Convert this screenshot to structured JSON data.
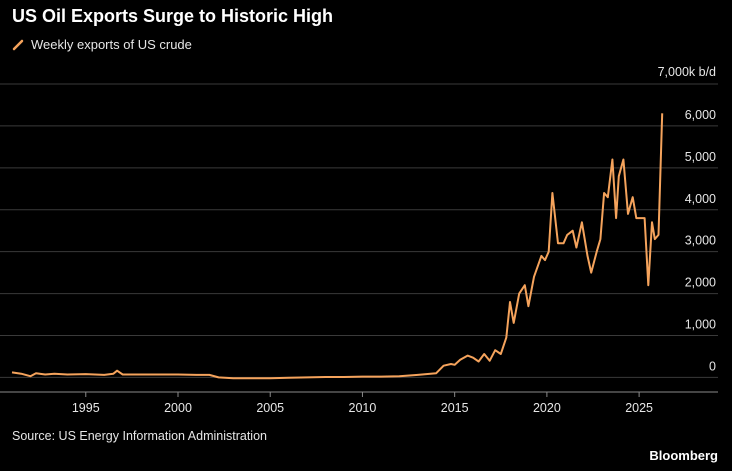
{
  "title": "US Oil Exports Surge to Historic High",
  "source": "Source: US Energy Information Administration",
  "brand": "Bloomberg",
  "colors": {
    "series": "#f5a35c",
    "grid": "#3a3a3a",
    "background": "#000000"
  },
  "chart_data": {
    "type": "line",
    "title": "US Oil Exports Surge to Historic High",
    "legend_placement": "top-left",
    "grid": true,
    "unit_label": "7,000k b/d",
    "xlim": [
      1991,
      2027
    ],
    "ylim": [
      -300,
      7000
    ],
    "x_ticks": [
      1995,
      2000,
      2005,
      2010,
      2015,
      2020,
      2025
    ],
    "x_tick_labels": [
      "1995",
      "2000",
      "2005",
      "2010",
      "2015",
      "2020",
      "2025"
    ],
    "y_ticks": [
      0,
      1000,
      2000,
      3000,
      4000,
      5000,
      6000
    ],
    "y_tick_labels": [
      "0",
      "1,000",
      "2,000",
      "3,000",
      "4,000",
      "5,000",
      "6,000"
    ],
    "series": [
      {
        "name": "Weekly exports of US crude",
        "points": [
          [
            1991.0,
            120
          ],
          [
            1991.5,
            90
          ],
          [
            1992.0,
            30
          ],
          [
            1992.3,
            100
          ],
          [
            1992.8,
            70
          ],
          [
            1993.3,
            90
          ],
          [
            1994.0,
            70
          ],
          [
            1995.0,
            80
          ],
          [
            1996.0,
            60
          ],
          [
            1996.5,
            90
          ],
          [
            1996.7,
            160
          ],
          [
            1997.0,
            70
          ],
          [
            1998.0,
            70
          ],
          [
            1999.0,
            70
          ],
          [
            2000.0,
            70
          ],
          [
            2001.0,
            60
          ],
          [
            2001.7,
            60
          ],
          [
            2002.2,
            0
          ],
          [
            2003.0,
            -20
          ],
          [
            2004.0,
            -20
          ],
          [
            2005.0,
            -20
          ],
          [
            2006.0,
            -10
          ],
          [
            2007.0,
            0
          ],
          [
            2008.0,
            10
          ],
          [
            2009.0,
            10
          ],
          [
            2010.0,
            20
          ],
          [
            2011.0,
            20
          ],
          [
            2012.0,
            30
          ],
          [
            2013.0,
            60
          ],
          [
            2014.0,
            100
          ],
          [
            2014.4,
            280
          ],
          [
            2014.8,
            320
          ],
          [
            2015.0,
            300
          ],
          [
            2015.3,
            420
          ],
          [
            2015.7,
            520
          ],
          [
            2016.0,
            470
          ],
          [
            2016.3,
            380
          ],
          [
            2016.6,
            560
          ],
          [
            2016.9,
            400
          ],
          [
            2017.2,
            650
          ],
          [
            2017.5,
            560
          ],
          [
            2017.8,
            950
          ],
          [
            2018.0,
            1800
          ],
          [
            2018.2,
            1300
          ],
          [
            2018.5,
            2000
          ],
          [
            2018.8,
            2200
          ],
          [
            2019.0,
            1700
          ],
          [
            2019.3,
            2400
          ],
          [
            2019.7,
            2900
          ],
          [
            2019.9,
            2800
          ],
          [
            2020.1,
            3000
          ],
          [
            2020.3,
            4400
          ],
          [
            2020.6,
            3200
          ],
          [
            2020.9,
            3200
          ],
          [
            2021.1,
            3400
          ],
          [
            2021.4,
            3500
          ],
          [
            2021.6,
            3100
          ],
          [
            2021.9,
            3700
          ],
          [
            2022.2,
            2900
          ],
          [
            2022.4,
            2500
          ],
          [
            2022.7,
            3000
          ],
          [
            2022.9,
            3300
          ],
          [
            2023.1,
            4400
          ],
          [
            2023.3,
            4300
          ],
          [
            2023.55,
            5200
          ],
          [
            2023.75,
            3800
          ],
          [
            2023.9,
            4800
          ],
          [
            2024.15,
            5200
          ],
          [
            2024.4,
            3900
          ],
          [
            2024.65,
            4300
          ],
          [
            2024.85,
            3800
          ],
          [
            2025.1,
            3800
          ],
          [
            2025.3,
            3800
          ],
          [
            2025.5,
            2200
          ],
          [
            2025.7,
            3700
          ],
          [
            2025.85,
            3300
          ],
          [
            2026.05,
            3400
          ],
          [
            2026.25,
            6300
          ]
        ]
      }
    ]
  }
}
